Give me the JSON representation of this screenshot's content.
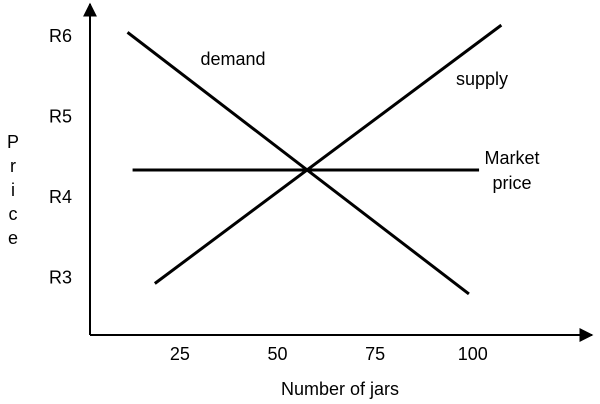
{
  "chart_data": {
    "type": "line",
    "x_label": "Number of jars",
    "y_label": "Price",
    "xlim": [
      2,
      130
    ],
    "xticks": [
      25,
      50,
      75,
      100
    ],
    "ylim": [
      2.3,
      6.4
    ],
    "yticks": [
      {
        "value": 3,
        "label": "R3"
      },
      {
        "value": 4,
        "label": "R4"
      },
      {
        "value": 5,
        "label": "R5"
      },
      {
        "value": 6,
        "label": "R6"
      }
    ],
    "grid": false,
    "series": [
      {
        "name": "demand",
        "color": "#000000",
        "x": [
          11.6,
          99
        ],
        "values": [
          6.06,
          2.81
        ]
      },
      {
        "name": "supply",
        "color": "#000000",
        "x": [
          18.6,
          107.3
        ],
        "values": [
          2.94,
          6.15
        ]
      },
      {
        "name": "Market price",
        "color": "#000000",
        "x": [
          12.9,
          101.6
        ],
        "values": [
          4.35,
          4.35
        ]
      }
    ]
  }
}
